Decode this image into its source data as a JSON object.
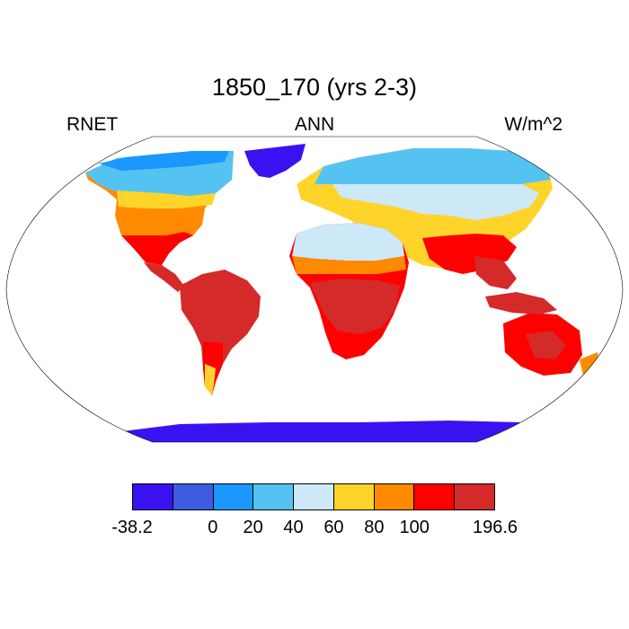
{
  "title": "1850_170 (yrs 2-3)",
  "left_label": "RNET",
  "center_label": "ANN",
  "right_label": "W/m^2",
  "colorbar": {
    "colors": [
      "#3a12f2",
      "#3d5ce0",
      "#1a98ff",
      "#55c3f2",
      "#cde8f7",
      "#ffd42a",
      "#ff8a00",
      "#ff0000",
      "#d42a2a"
    ],
    "labels": [
      "-38.2",
      "",
      "0",
      "20",
      "40",
      "60",
      "80",
      "100",
      "",
      "196.6"
    ]
  },
  "map_style": {
    "projection": "robinson",
    "ocean": "#ffffff",
    "coastline": "#000000"
  }
}
